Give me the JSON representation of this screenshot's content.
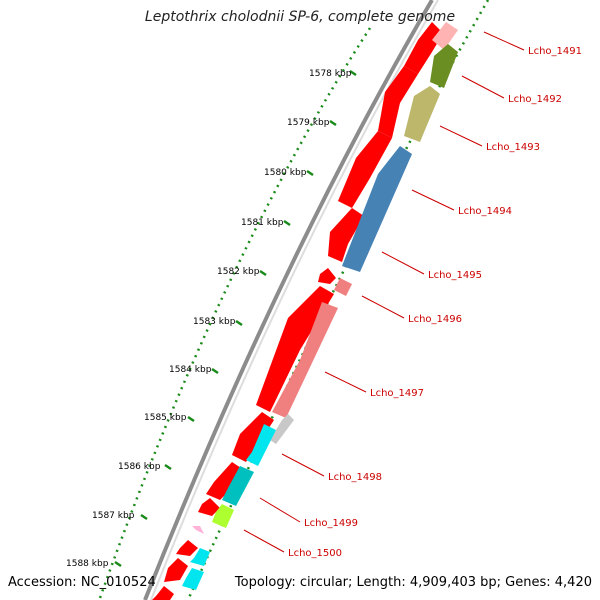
{
  "title": "Leptothrix cholodnii SP-6, complete genome",
  "accession_label": "Accession: NC_010524",
  "summary_label": "Topology: circular; Length: 4,909,403 bp; Genes: 4,420",
  "kbp_labels": [
    "1578 kbp",
    "1579 kbp",
    "1580 kbp",
    "1581 kbp",
    "1582 kbp",
    "1583 kbp",
    "1584 kbp",
    "1585 kbp",
    "1586 kbp",
    "1587 kbp",
    "1588 kbp"
  ],
  "gene_labels": [
    "Lcho_1491",
    "Lcho_1492",
    "Lcho_1493",
    "Lcho_1494",
    "Lcho_1495",
    "Lcho_1496",
    "Lcho_1497",
    "Lcho_1498",
    "Lcho_1499",
    "Lcho_1500"
  ],
  "colors": {
    "forward_cds": "#ff0000",
    "backbone": "#8c8c8c",
    "tick_dots": "#1a8a1a",
    "label_red": "#cc0000",
    "pink": "#ffb3b3",
    "olive": "#6b8e23",
    "khaki": "#bdb76b",
    "steelblue": "#4682b4",
    "lightcoral": "#f08080",
    "cyan": "#00e5ee",
    "darkcyan": "#00bfbf",
    "lime": "#adff2f",
    "gray_band": "#c8c8c8"
  }
}
